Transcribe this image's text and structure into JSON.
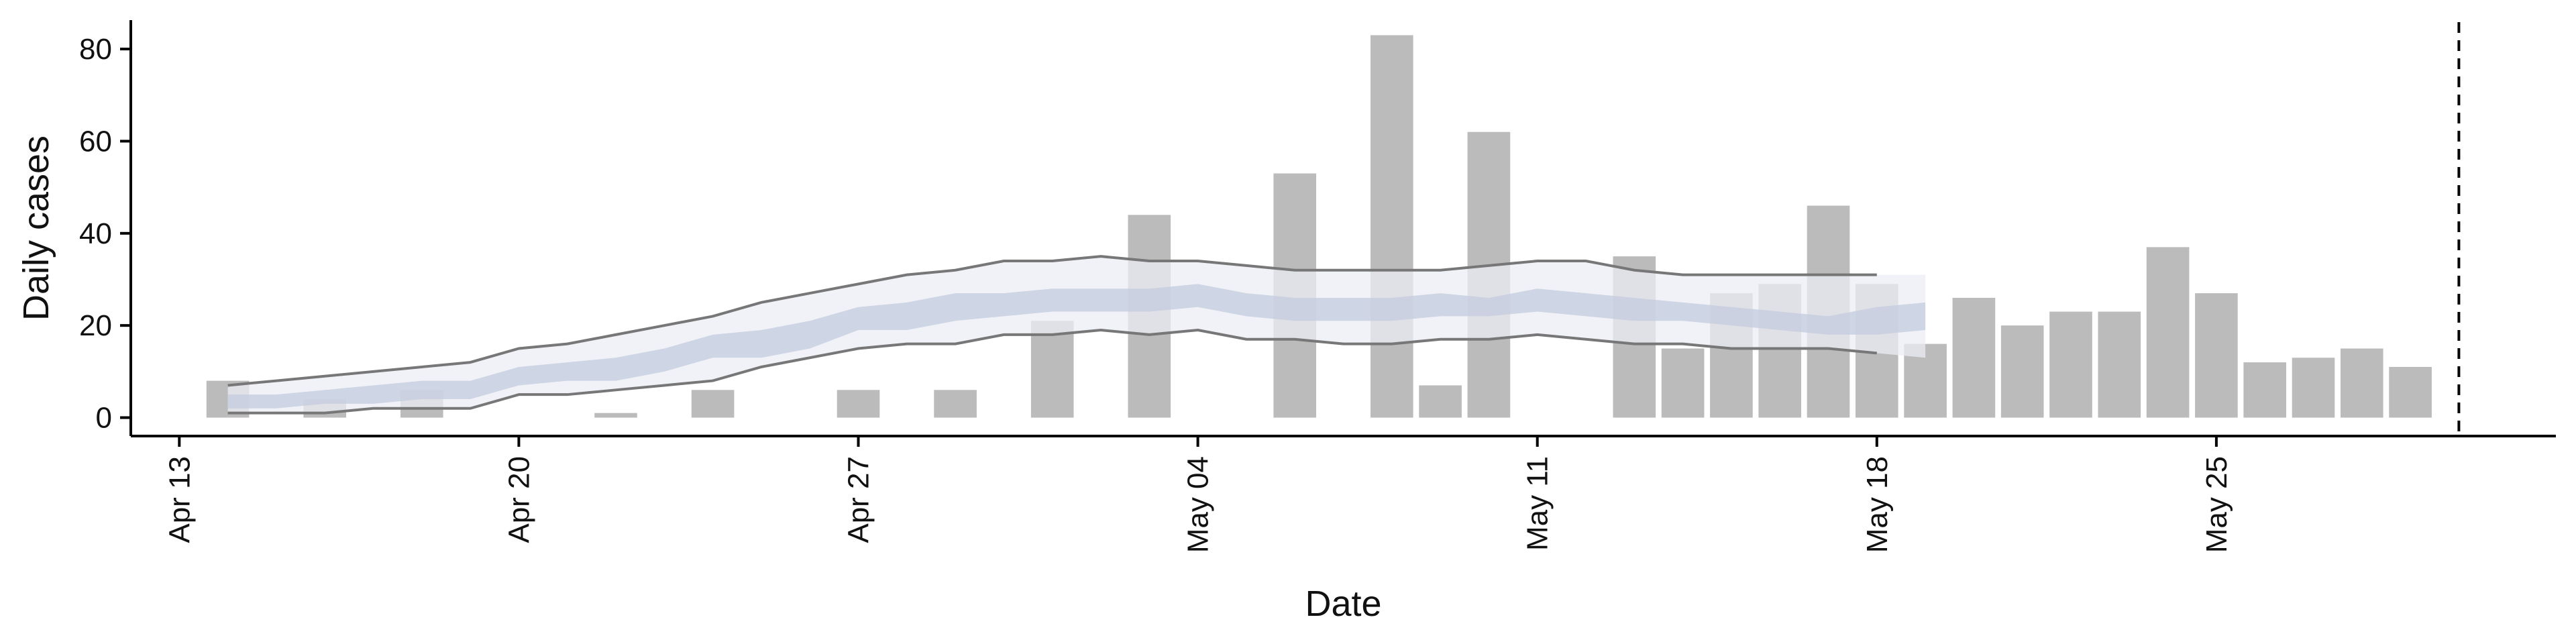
{
  "chart_data": {
    "type": "bar",
    "xlabel": "Date",
    "ylabel": "Daily cases",
    "ylim": [
      -4,
      87
    ],
    "xlim": [
      "2020-04-12",
      "2020-06-01"
    ],
    "grid": false,
    "legend": "none",
    "y_ticks": [
      {
        "value": 0,
        "label": "0"
      },
      {
        "value": 20,
        "label": "20"
      },
      {
        "value": 40,
        "label": "40"
      },
      {
        "value": 60,
        "label": "60"
      },
      {
        "value": 80,
        "label": "80"
      }
    ],
    "x_ticks": [
      {
        "date": "2020-04-13",
        "label": "Apr 13"
      },
      {
        "date": "2020-04-20",
        "label": "Apr 20"
      },
      {
        "date": "2020-04-27",
        "label": "Apr 27"
      },
      {
        "date": "2020-05-04",
        "label": "May 04"
      },
      {
        "date": "2020-05-11",
        "label": "May 11"
      },
      {
        "date": "2020-05-18",
        "label": "May 18"
      },
      {
        "date": "2020-05-25",
        "label": "May 25"
      }
    ],
    "bars": {
      "dates": [
        "2020-04-14",
        "2020-04-16",
        "2020-04-18",
        "2020-04-22",
        "2020-04-24",
        "2020-04-27",
        "2020-04-29",
        "2020-05-01",
        "2020-05-03",
        "2020-05-06",
        "2020-05-08",
        "2020-05-09",
        "2020-05-10",
        "2020-05-13",
        "2020-05-14",
        "2020-05-15",
        "2020-05-16",
        "2020-05-17",
        "2020-05-18",
        "2020-05-19",
        "2020-05-20",
        "2020-05-21",
        "2020-05-22",
        "2020-05-23",
        "2020-05-24",
        "2020-05-25",
        "2020-05-26",
        "2020-05-27",
        "2020-05-28",
        "2020-05-29"
      ],
      "values": [
        8,
        4,
        6,
        1,
        6,
        6,
        6,
        21,
        44,
        53,
        83,
        7,
        62,
        35,
        15,
        27,
        29,
        46,
        29,
        16,
        26,
        20,
        23,
        23,
        37,
        27,
        12,
        13,
        15,
        11
      ]
    },
    "estimate": {
      "dates": [
        "2020-04-14",
        "2020-04-15",
        "2020-04-16",
        "2020-04-17",
        "2020-04-18",
        "2020-04-19",
        "2020-04-20",
        "2020-04-21",
        "2020-04-22",
        "2020-04-23",
        "2020-04-24",
        "2020-04-25",
        "2020-04-26",
        "2020-04-27",
        "2020-04-28",
        "2020-04-29",
        "2020-04-30",
        "2020-05-01",
        "2020-05-02",
        "2020-05-03",
        "2020-05-04",
        "2020-05-05",
        "2020-05-06",
        "2020-05-07",
        "2020-05-08",
        "2020-05-09",
        "2020-05-10",
        "2020-05-11",
        "2020-05-12",
        "2020-05-13",
        "2020-05-14",
        "2020-05-15",
        "2020-05-16",
        "2020-05-17",
        "2020-05-18",
        "2020-05-19"
      ],
      "outer_upper": [
        7,
        8,
        9,
        10,
        11,
        12,
        15,
        16,
        18,
        20,
        22,
        25,
        27,
        29,
        31,
        32,
        34,
        34,
        35,
        34,
        34,
        33,
        32,
        32,
        32,
        32,
        33,
        34,
        34,
        32,
        31,
        31,
        31,
        31,
        31,
        31
      ],
      "outer_lower": [
        1,
        1,
        1,
        2,
        2,
        2,
        5,
        5,
        6,
        7,
        8,
        11,
        13,
        15,
        16,
        16,
        18,
        18,
        19,
        18,
        19,
        17,
        17,
        16,
        16,
        17,
        17,
        18,
        17,
        16,
        16,
        15,
        15,
        15,
        14,
        13
      ],
      "inner_upper": [
        5,
        5,
        6,
        7,
        8,
        8,
        11,
        12,
        13,
        15,
        18,
        19,
        21,
        24,
        25,
        27,
        27,
        28,
        28,
        28,
        29,
        27,
        26,
        26,
        26,
        27,
        26,
        28,
        27,
        26,
        25,
        24,
        23,
        22,
        24,
        25
      ],
      "inner_lower": [
        2,
        2,
        3,
        3,
        4,
        4,
        7,
        8,
        8,
        10,
        13,
        13,
        15,
        19,
        19,
        21,
        22,
        23,
        23,
        23,
        24,
        22,
        21,
        21,
        21,
        22,
        22,
        23,
        22,
        21,
        21,
        20,
        19,
        18,
        18,
        19
      ]
    },
    "vline_date": "2020-05-30"
  },
  "colors": {
    "bar": "#bbbbbb",
    "outer_band": "#eceef4",
    "inner_band": "#c5cde0",
    "bound_line": "#777777",
    "axis": "#000000",
    "vline": "#000000"
  }
}
